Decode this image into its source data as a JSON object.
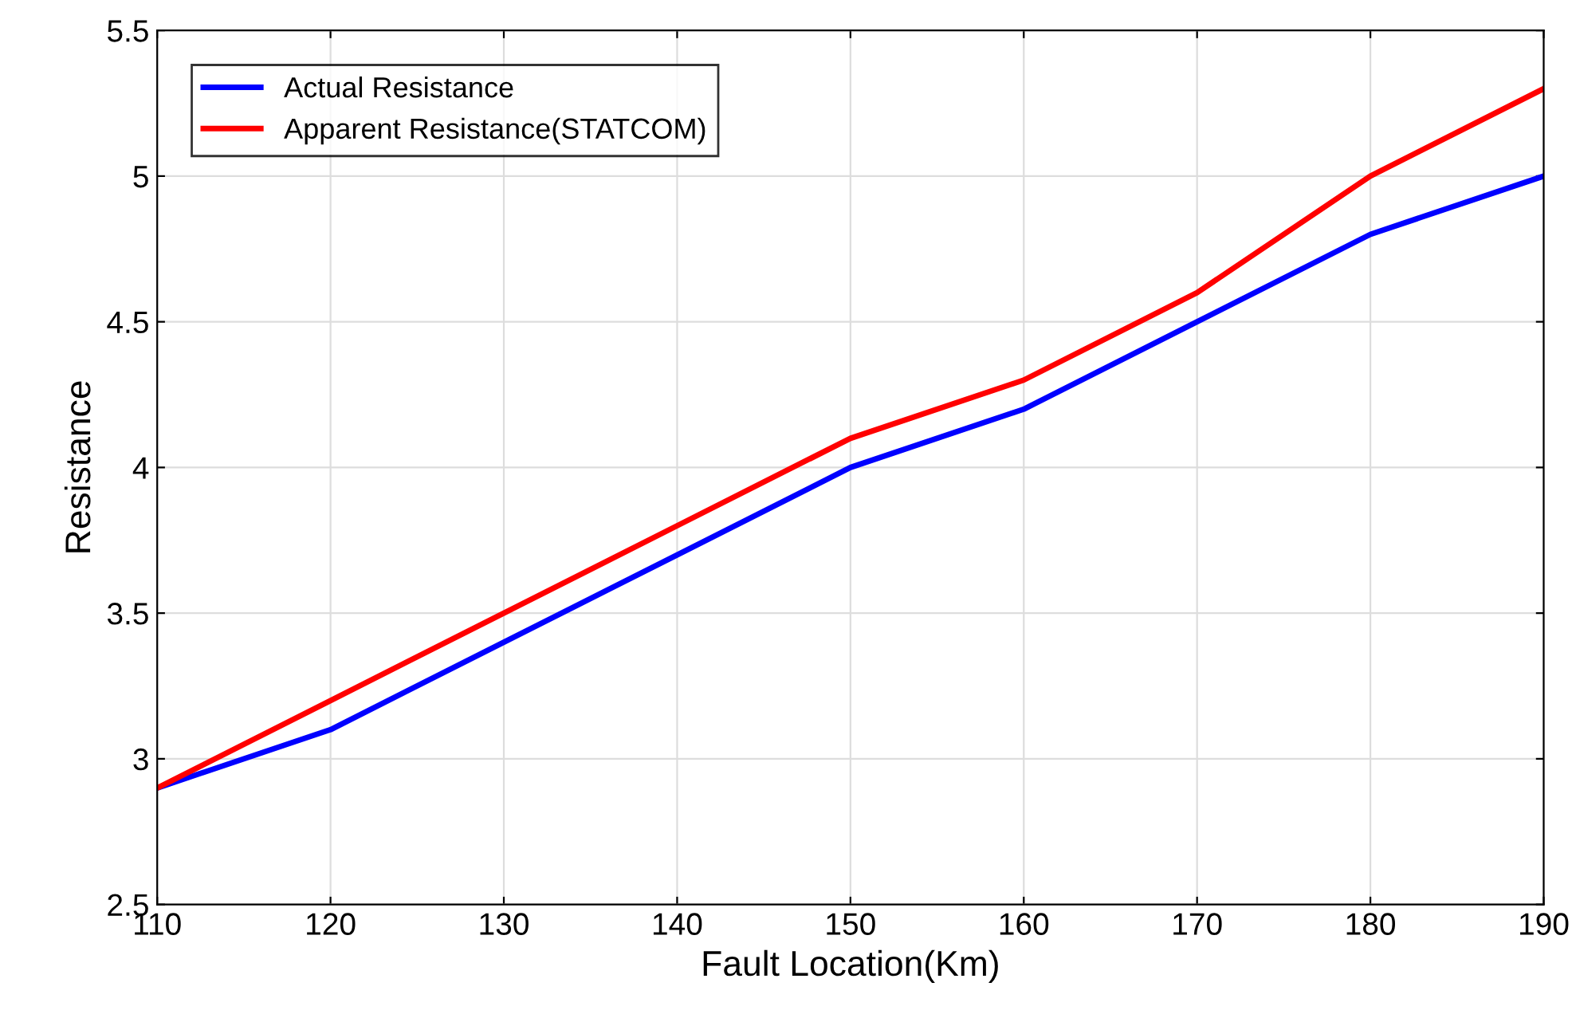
{
  "chart_data": {
    "type": "line",
    "xlabel": "Fault Location(Km)",
    "ylabel": "Resistance",
    "x": [
      110,
      120,
      130,
      140,
      150,
      160,
      170,
      180,
      190
    ],
    "series": [
      {
        "name": "Actual Resistance",
        "color": "#0000ff",
        "values": [
          2.9,
          3.1,
          3.4,
          3.7,
          4.0,
          4.2,
          4.5,
          4.8,
          5.0
        ]
      },
      {
        "name": "Apparent Resistance(STATCOM)",
        "color": "#ff0000",
        "values": [
          2.9,
          3.2,
          3.5,
          3.8,
          4.1,
          4.3,
          4.6,
          5.0,
          5.3
        ]
      }
    ],
    "xlim": [
      110,
      190
    ],
    "xticks": [
      110,
      120,
      130,
      140,
      150,
      160,
      170,
      180,
      190
    ],
    "ylim": [
      2.5,
      5.5
    ],
    "yticks": [
      2.5,
      3,
      3.5,
      4,
      4.5,
      5,
      5.5
    ],
    "grid": true,
    "legend": "top left",
    "marker": "none",
    "line_style": "solid"
  }
}
